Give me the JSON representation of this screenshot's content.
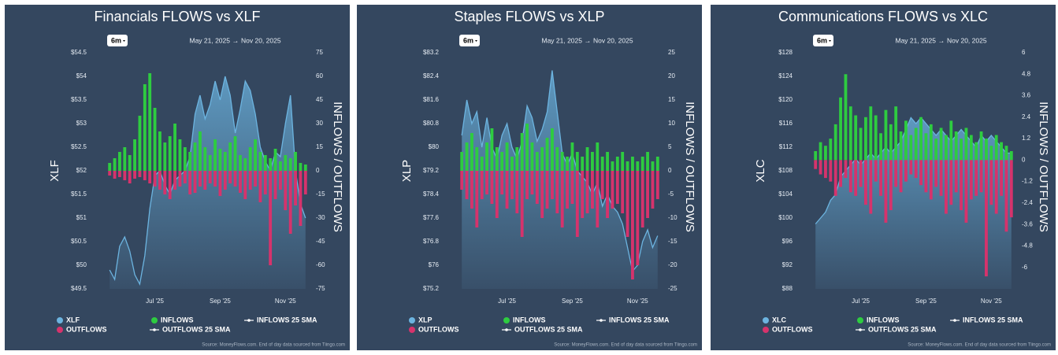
{
  "chart_data": [
    {
      "type": "flows",
      "title": "Financials FLOWS vs XLF",
      "range_button": "6m",
      "date_from": "May 21, 2025",
      "date_to": "Nov 20, 2025",
      "y_label": "XLF",
      "y2_label": "INFLOWS / OUTFLOWS",
      "categories": [
        null,
        null,
        null,
        null,
        null,
        null,
        null,
        null,
        null,
        "Jul '25",
        null,
        null,
        null,
        null,
        null,
        null,
        null,
        null,
        null,
        null,
        null,
        null,
        "Sep '25",
        null,
        null,
        null,
        null,
        null,
        null,
        null,
        null,
        null,
        null,
        null,
        null,
        "Nov '25",
        null,
        null,
        null,
        null
      ],
      "ylim": [
        49.5,
        54.5
      ],
      "yticks": [
        {
          "value": 49.5,
          "label": "$49.5"
        },
        {
          "value": 50,
          "label": "$50"
        },
        {
          "value": 50.5,
          "label": "$50.5"
        },
        {
          "value": 51,
          "label": "$51"
        },
        {
          "value": 51.5,
          "label": "$51.5"
        },
        {
          "value": 52,
          "label": "$52"
        },
        {
          "value": 52.5,
          "label": "$52.5"
        },
        {
          "value": 53,
          "label": "$53"
        },
        {
          "value": 53.5,
          "label": "$53.5"
        },
        {
          "value": 54,
          "label": "$54"
        },
        {
          "value": 54.5,
          "label": "$54.5"
        }
      ],
      "y2lim": [
        -75,
        75
      ],
      "y2ticks": [
        -75,
        -60,
        -45,
        -30,
        -15,
        0,
        15,
        30,
        45,
        60,
        75
      ],
      "series": [
        {
          "name": "XLF",
          "color": "#6cb4e0",
          "values": [
            49.9,
            49.7,
            50.4,
            50.6,
            50.3,
            49.8,
            49.6,
            50.2,
            51.2,
            51.9,
            52.0,
            51.7,
            51.5,
            51.8,
            51.9,
            52.0,
            52.3,
            53.2,
            53.6,
            53.1,
            53.4,
            53.9,
            53.5,
            54.0,
            53.6,
            52.8,
            53.3,
            53.9,
            53.7,
            53.2,
            52.5,
            52.2,
            52.0,
            52.4,
            52.3,
            53.0,
            53.6,
            52.0,
            51.3,
            51.0
          ]
        },
        {
          "name": "INFLOWS",
          "color": "#2ecc40",
          "axis": "y2",
          "values": [
            5,
            8,
            12,
            15,
            10,
            20,
            35,
            55,
            62,
            40,
            25,
            18,
            22,
            30,
            20,
            15,
            12,
            18,
            25,
            15,
            10,
            20,
            14,
            12,
            18,
            22,
            10,
            8,
            15,
            20,
            12,
            10,
            8,
            14,
            6,
            10,
            8,
            12,
            5,
            4
          ]
        },
        {
          "name": "OUTFLOWS",
          "color": "#d6336c",
          "axis": "y2",
          "values": [
            -3,
            -5,
            -4,
            -6,
            -8,
            -5,
            -4,
            -6,
            -8,
            -10,
            -12,
            -15,
            -18,
            -12,
            -10,
            -8,
            -15,
            -14,
            -10,
            -12,
            -8,
            -10,
            -16,
            -12,
            -8,
            -10,
            -14,
            -18,
            -12,
            -10,
            -20,
            -15,
            -60,
            -18,
            -12,
            -25,
            -40,
            -22,
            -35,
            -15
          ]
        }
      ],
      "extra_legend": [
        "INFLOWS 25 SMA",
        "OUTFLOWS 25 SMA"
      ],
      "source": "Source: MoneyFlows.com. End of day data sourced from Tiingo.com"
    },
    {
      "type": "flows",
      "title": "Staples FLOWS vs XLP",
      "range_button": "6m",
      "date_from": "May 21, 2025",
      "date_to": "Nov 20, 2025",
      "y_label": "XLP",
      "y2_label": "INFLOWS / OUTFLOWS",
      "categories": [
        null,
        null,
        null,
        null,
        null,
        null,
        null,
        null,
        null,
        "Jul '25",
        null,
        null,
        null,
        null,
        null,
        null,
        null,
        null,
        null,
        null,
        null,
        null,
        "Sep '25",
        null,
        null,
        null,
        null,
        null,
        null,
        null,
        null,
        null,
        null,
        null,
        null,
        "Nov '25",
        null,
        null,
        null,
        null
      ],
      "ylim": [
        75.2,
        83.2
      ],
      "yticks": [
        {
          "value": 75.2,
          "label": "$75.2"
        },
        {
          "value": 76,
          "label": "$76"
        },
        {
          "value": 76.8,
          "label": "$76.8"
        },
        {
          "value": 77.6,
          "label": "$77.6"
        },
        {
          "value": 78.4,
          "label": "$78.4"
        },
        {
          "value": 79.2,
          "label": "$79.2"
        },
        {
          "value": 80,
          "label": "$80"
        },
        {
          "value": 80.8,
          "label": "$80.8"
        },
        {
          "value": 81.6,
          "label": "$81.6"
        },
        {
          "value": 82.4,
          "label": "$82.4"
        },
        {
          "value": 83.2,
          "label": "$83.2"
        }
      ],
      "y2lim": [
        -25,
        25
      ],
      "y2ticks": [
        -25,
        -20,
        -15,
        -10,
        -5,
        0,
        5,
        10,
        15,
        20,
        25
      ],
      "series": [
        {
          "name": "XLP",
          "color": "#6cb4e0",
          "values": [
            80.4,
            81.6,
            80.8,
            81.2,
            80.0,
            81.0,
            80.0,
            79.6,
            80.4,
            80.8,
            80.0,
            79.6,
            80.2,
            81.4,
            81.0,
            80.2,
            80.6,
            81.2,
            82.6,
            81.2,
            79.8,
            79.4,
            79.8,
            79.2,
            79.0,
            78.8,
            78.4,
            78.8,
            78.0,
            78.4,
            78.0,
            77.8,
            77.4,
            76.6,
            75.8,
            76.0,
            76.8,
            77.2,
            76.6,
            77.0
          ]
        },
        {
          "name": "INFLOWS",
          "color": "#2ecc40",
          "axis": "y2",
          "values": [
            4,
            6,
            8,
            5,
            3,
            6,
            9,
            5,
            4,
            6,
            3,
            5,
            8,
            10,
            6,
            4,
            5,
            7,
            9,
            5,
            4,
            3,
            6,
            4,
            3,
            5,
            4,
            6,
            3,
            4,
            2,
            3,
            4,
            2,
            3,
            2,
            3,
            4,
            2,
            3
          ]
        },
        {
          "name": "OUTFLOWS",
          "color": "#d6336c",
          "axis": "y2",
          "values": [
            -4,
            -6,
            -8,
            -12,
            -6,
            -5,
            -7,
            -10,
            -5,
            -8,
            -6,
            -9,
            -14,
            -6,
            -5,
            -7,
            -10,
            -8,
            -6,
            -9,
            -12,
            -8,
            -7,
            -14,
            -10,
            -9,
            -8,
            -12,
            -6,
            -10,
            -8,
            -7,
            -9,
            -14,
            -23,
            -20,
            -12,
            -10,
            -8,
            -6
          ]
        }
      ],
      "extra_legend": [
        "INFLOWS 25 SMA",
        "OUTFLOWS 25 SMA"
      ],
      "source": "Source: MoneyFlows.com. End of day data sourced from Tiingo.com"
    },
    {
      "type": "flows",
      "title": "Communications FLOWS vs XLC",
      "range_button": "6m",
      "date_from": "May 21, 2025",
      "date_to": "Nov 20, 2025",
      "y_label": "XLC",
      "y2_label": "INFLOWS / OUTFLOWS",
      "categories": [
        null,
        null,
        null,
        null,
        null,
        null,
        null,
        null,
        null,
        "Jul '25",
        null,
        null,
        null,
        null,
        null,
        null,
        null,
        null,
        null,
        null,
        null,
        null,
        "Sep '25",
        null,
        null,
        null,
        null,
        null,
        null,
        null,
        null,
        null,
        null,
        null,
        null,
        "Nov '25",
        null,
        null,
        null,
        null
      ],
      "ylim": [
        88,
        128
      ],
      "yticks": [
        {
          "value": 88,
          "label": "$88"
        },
        {
          "value": 92,
          "label": "$92"
        },
        {
          "value": 96,
          "label": "$96"
        },
        {
          "value": 100,
          "label": "$100"
        },
        {
          "value": 104,
          "label": "$104"
        },
        {
          "value": 108,
          "label": "$108"
        },
        {
          "value": 112,
          "label": "$112"
        },
        {
          "value": 116,
          "label": "$116"
        },
        {
          "value": 120,
          "label": "$120"
        },
        {
          "value": 124,
          "label": "$124"
        },
        {
          "value": 128,
          "label": "$128"
        }
      ],
      "y2lim": [
        -7.2,
        6
      ],
      "y2ticks": [
        -6,
        -4.8,
        -3.6,
        -2.4,
        -1.2,
        0,
        1.2,
        2.4,
        3.6,
        4.8,
        6
      ],
      "series": [
        {
          "name": "XLC",
          "color": "#6cb4e0",
          "values": [
            99,
            100,
            101,
            103,
            104,
            107,
            108,
            109,
            110,
            109,
            110,
            111,
            110,
            111,
            112,
            111,
            112,
            113,
            115,
            117,
            116,
            117,
            116,
            115,
            114,
            115,
            114,
            113,
            114,
            115,
            114,
            113,
            112,
            114,
            113,
            114,
            113,
            112,
            111,
            111
          ]
        },
        {
          "name": "INFLOWS",
          "color": "#2ecc40",
          "axis": "y2",
          "values": [
            0.5,
            1,
            0.8,
            1.2,
            2,
            3.5,
            4.8,
            3,
            2.5,
            1.8,
            2.4,
            3,
            2.5,
            1.5,
            2.8,
            2,
            3,
            1.6,
            2.2,
            1.4,
            1.8,
            2.4,
            1.5,
            2,
            1.2,
            1.8,
            1.4,
            2.2,
            1.6,
            1.2,
            1.8,
            1.4,
            1,
            1.6,
            1.2,
            0.8,
            1.4,
            1,
            0.8,
            0.5
          ]
        },
        {
          "name": "OUTFLOWS",
          "color": "#d6336c",
          "axis": "y2",
          "values": [
            -0.5,
            -0.8,
            -1,
            -1.2,
            -2,
            -1.5,
            -1,
            -1.8,
            -2,
            -1.5,
            -2.5,
            -3,
            -1.2,
            -2,
            -3.5,
            -2.8,
            -1.5,
            -1.8,
            -1.2,
            -0.8,
            -1,
            -1.4,
            -1.8,
            -2.2,
            -1.5,
            -2,
            -3,
            -2.5,
            -1.8,
            -2.8,
            -3.5,
            -2.2,
            -2,
            -1.8,
            -6.5,
            -2.5,
            -3,
            -2,
            -4,
            -3.2
          ]
        }
      ],
      "extra_legend": [
        "INFLOWS 25 SMA",
        "OUTFLOWS 25 SMA"
      ],
      "source": "Source: MoneyFlows.com. End of day data sourced from Tiingo.com"
    }
  ]
}
